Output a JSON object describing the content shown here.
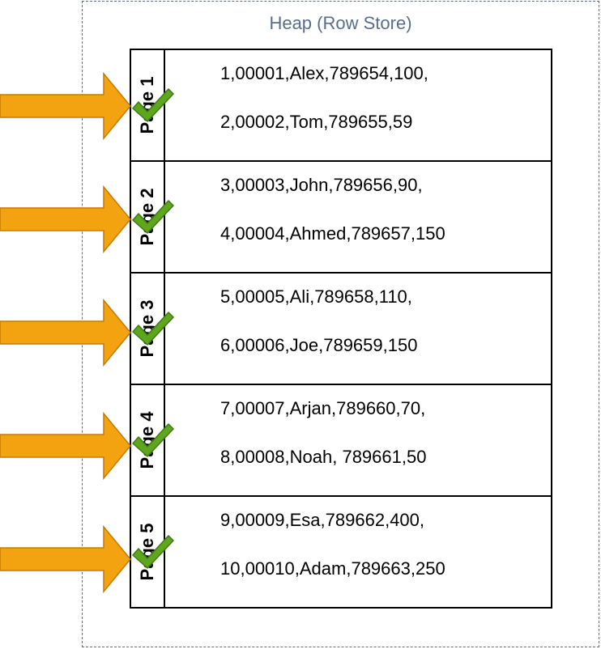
{
  "heap": {
    "title": "Heap (Row Store)",
    "pages": [
      {
        "label": "Page 1",
        "rows": [
          "1,00001,Alex,789654,100,",
          "2,00002,Tom,789655,59"
        ]
      },
      {
        "label": "Page 2",
        "rows": [
          "3,00003,John,789656,90,",
          "4,00004,Ahmed,789657,150"
        ]
      },
      {
        "label": "Page 3",
        "rows": [
          "5,00005,Ali,789658,110,",
          "6,00006,Joe,789659,150"
        ]
      },
      {
        "label": "Page 4",
        "rows": [
          "7,00007,Arjan,789660,70,",
          "8,00008,Noah, 789661,50"
        ]
      },
      {
        "label": "Page 5",
        "rows": [
          "9,00009,Esa,789662,400,",
          "10,00010,Adam,789663,250"
        ]
      }
    ]
  },
  "colors": {
    "arrow_fill": "#f2a30f",
    "arrow_stroke": "#c77a00",
    "check_fill": "#5ea61e",
    "check_stroke": "#3d7a10",
    "container_border": "#5a6e8c"
  },
  "icons": {
    "arrow": "right-arrow-icon",
    "check": "checkmark-icon"
  }
}
